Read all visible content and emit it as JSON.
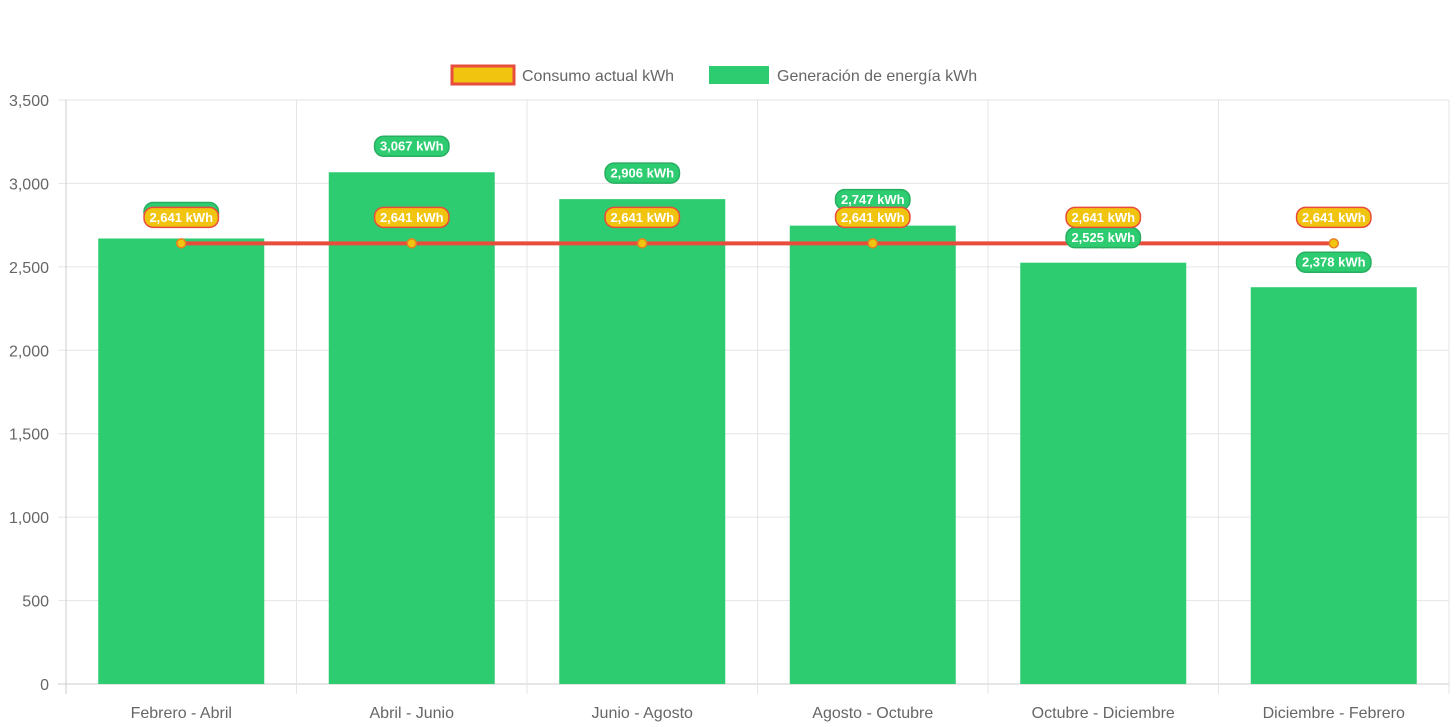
{
  "chart_data": {
    "type": "bar",
    "categories": [
      "Febrero - Abril",
      "Abril - Junio",
      "Junio - Agosto",
      "Agosto - Octubre",
      "Octubre - Diciembre",
      "Diciembre - Febrero"
    ],
    "series": [
      {
        "name": "Consumo actual kWh",
        "type": "line",
        "values": [
          2641,
          2641,
          2641,
          2641,
          2641,
          2641
        ],
        "labels": [
          "2,641 kWh",
          "2,641 kWh",
          "2,641 kWh",
          "2,641 kWh",
          "2,641 kWh",
          "2,641 kWh"
        ],
        "color": "#e74c3c",
        "fill_color": "#f1c40f"
      },
      {
        "name": "Generación de energía kWh",
        "type": "bar",
        "values": [
          2670,
          3067,
          2906,
          2747,
          2525,
          2378
        ],
        "labels": [
          "2,670 kWh",
          "3,067 kWh",
          "2,906 kWh",
          "2,747 kWh",
          "2,525 kWh",
          "2,378 kWh"
        ],
        "color": "#2ecc71",
        "border_color": "#27ae60"
      }
    ],
    "y_ticks": [
      "0",
      "500",
      "1,000",
      "1,500",
      "2,000",
      "2,500",
      "3,000",
      "3,500"
    ],
    "ylim": [
      0,
      3500
    ],
    "grid": true,
    "legend": "top-center",
    "colors": {
      "grid": "#e5e5e5",
      "axis": "#cccccc",
      "text": "#666666"
    }
  }
}
